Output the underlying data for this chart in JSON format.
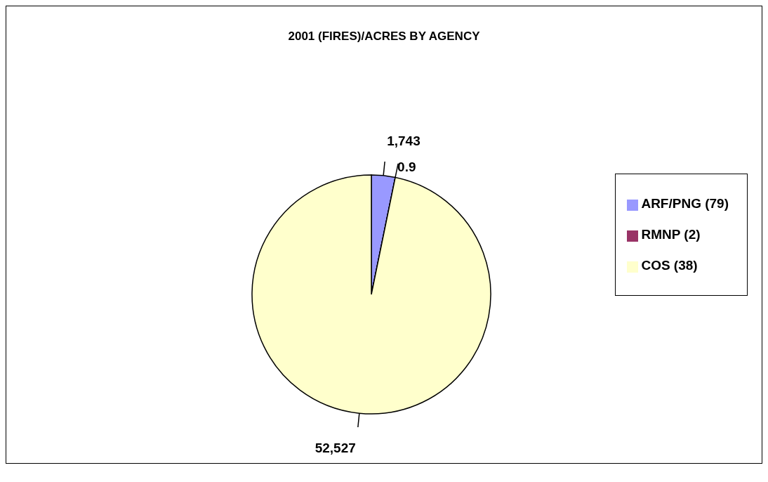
{
  "chart_data": {
    "type": "pie",
    "title": "2001 (FIRES)/ACRES BY AGENCY",
    "categories": [
      "ARF/PNG (79)",
      "RMNP (2)",
      "COS (38)"
    ],
    "values": [
      1743,
      0.9,
      52527
    ],
    "value_labels": [
      "1,743",
      "0.9",
      "52,527"
    ],
    "colors": [
      "#9999ff",
      "#993366",
      "#ffffcc"
    ],
    "legend": "right"
  }
}
